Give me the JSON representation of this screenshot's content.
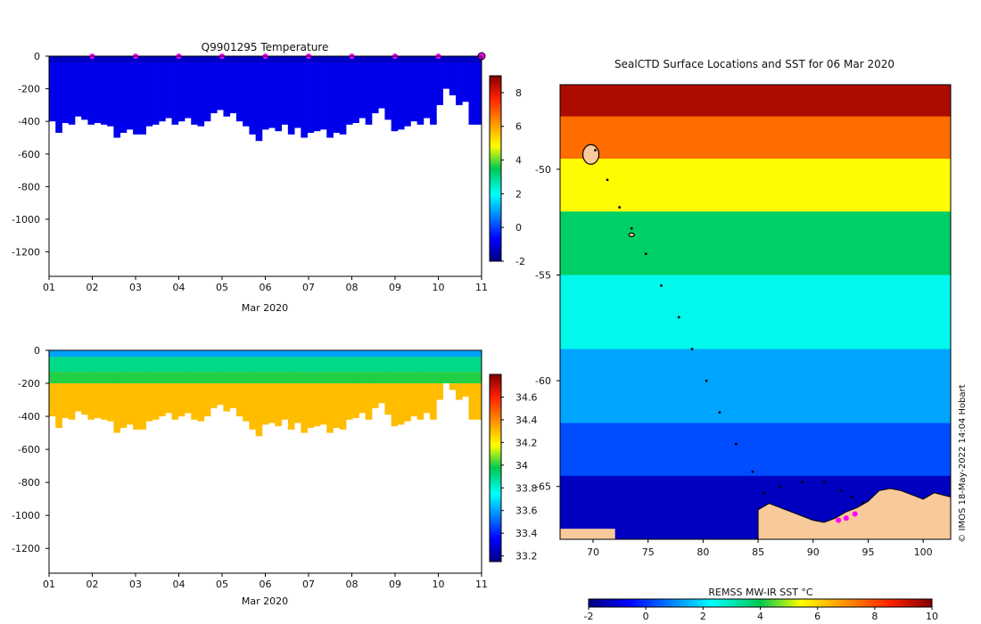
{
  "chart_data": [
    {
      "type": "heatmap",
      "title": "Q9901295  Temperature",
      "variable": "temperature",
      "xlabel": "Mar 2020",
      "x_ticks": [
        "01",
        "02",
        "03",
        "04",
        "05",
        "06",
        "07",
        "08",
        "09",
        "10",
        "11"
      ],
      "x_range_days": [
        1,
        11
      ],
      "y_ticks": [
        0,
        -200,
        -400,
        -600,
        -800,
        -1000,
        -1200
      ],
      "ylim": [
        -1350,
        0
      ],
      "colorbar": {
        "ticks": [
          -2,
          0,
          2,
          4,
          6,
          8
        ],
        "range": [
          -2,
          9
        ]
      },
      "profile_markers_days": [
        2,
        3,
        4,
        5,
        6,
        7,
        8,
        9,
        10,
        11
      ],
      "profile_depths_m": [
        -400,
        -470,
        -410,
        -420,
        -370,
        -390,
        -420,
        -410,
        -420,
        -430,
        -500,
        -470,
        -450,
        -480,
        -480,
        -430,
        -420,
        -400,
        -380,
        -420,
        -400,
        -380,
        -420,
        -430,
        -400,
        -350,
        -330,
        -370,
        -350,
        -400,
        -430,
        -480,
        -520,
        -450,
        -440,
        -460,
        -420,
        -480,
        -440,
        -500,
        -470,
        -460,
        -450,
        -500,
        -470,
        -480,
        -420,
        -410,
        -380,
        -420,
        -350,
        -320,
        -390,
        -460,
        -450,
        -430,
        -400,
        -420,
        -380,
        -420,
        -300,
        -200,
        -240,
        -300,
        -280,
        -420,
        -420
      ],
      "values_note": "near-uniform cold water ~-1 to 0 °C throughout the profiled layer"
    },
    {
      "type": "heatmap",
      "title": "",
      "variable": "salinity",
      "xlabel": "Mar 2020",
      "x_ticks": [
        "01",
        "02",
        "03",
        "04",
        "05",
        "06",
        "07",
        "08",
        "09",
        "10",
        "11"
      ],
      "x_range_days": [
        1,
        11
      ],
      "y_ticks": [
        0,
        -200,
        -400,
        -600,
        -800,
        -1000,
        -1200
      ],
      "ylim": [
        -1350,
        0
      ],
      "colorbar": {
        "ticks": [
          33.2,
          33.4,
          33.6,
          33.8,
          34,
          34.2,
          34.4,
          34.6
        ],
        "range": [
          33.15,
          34.8
        ]
      },
      "layers": [
        {
          "depth_from": 0,
          "depth_to": -40,
          "salinity": 33.6
        },
        {
          "depth_from": -40,
          "depth_to": -130,
          "salinity": 33.9
        },
        {
          "depth_from": -130,
          "depth_to": -200,
          "salinity": 34.0
        },
        {
          "depth_from": -200,
          "depth_to": "bottom",
          "salinity": 34.3
        }
      ]
    },
    {
      "type": "heatmap",
      "title": "SealCTD Surface Locations and SST for 06 Mar 2020",
      "variable": "sea surface temperature (map)",
      "colorbar_label": "REMSS MW-IR SST °C",
      "colorbar_ticks": [
        -2,
        0,
        2,
        4,
        6,
        8,
        10
      ],
      "colorbar_range": [
        -2,
        10
      ],
      "x_ticks": [
        70,
        75,
        80,
        85,
        90,
        95,
        100
      ],
      "xlim": [
        67,
        102.5
      ],
      "y_ticks": [
        -50,
        -55,
        -60,
        -65
      ],
      "ylim": [
        -67.5,
        -46
      ],
      "sst_bands": [
        {
          "lat_from": -46,
          "lat_to": -47.5,
          "sst": 9.5
        },
        {
          "lat_from": -47.5,
          "lat_to": -49.5,
          "sst": 7.5
        },
        {
          "lat_from": -49.5,
          "lat_to": -52,
          "sst": 5.5
        },
        {
          "lat_from": -52,
          "lat_to": -55,
          "sst": 3.8
        },
        {
          "lat_from": -55,
          "lat_to": -58.5,
          "sst": 2.5
        },
        {
          "lat_from": -58.5,
          "lat_to": -62,
          "sst": 1.3
        },
        {
          "lat_from": -62,
          "lat_to": -64.5,
          "sst": 0.3
        },
        {
          "lat_from": -64.5,
          "lat_to": -67.5,
          "sst": -1.3
        }
      ],
      "track": [
        {
          "lon": 70.2,
          "lat": -49.1
        },
        {
          "lon": 71.3,
          "lat": -50.5
        },
        {
          "lon": 72.4,
          "lat": -51.8
        },
        {
          "lon": 73.5,
          "lat": -52.8
        },
        {
          "lon": 74.8,
          "lat": -54.0
        },
        {
          "lon": 76.2,
          "lat": -55.5
        },
        {
          "lon": 77.8,
          "lat": -57.0
        },
        {
          "lon": 79.0,
          "lat": -58.5
        },
        {
          "lon": 80.3,
          "lat": -60.0
        },
        {
          "lon": 81.5,
          "lat": -61.5
        },
        {
          "lon": 83.0,
          "lat": -63.0
        },
        {
          "lon": 84.5,
          "lat": -64.3
        },
        {
          "lon": 85.5,
          "lat": -65.3
        },
        {
          "lon": 87.0,
          "lat": -65.0
        },
        {
          "lon": 89.0,
          "lat": -64.8
        },
        {
          "lon": 91.0,
          "lat": -64.8
        },
        {
          "lon": 92.5,
          "lat": -65.2
        },
        {
          "lon": 93.5,
          "lat": -65.5
        },
        {
          "lon": 94.5,
          "lat": -65.8
        }
      ],
      "surface_points": [
        {
          "lon": 92.3,
          "lat": -66.6
        },
        {
          "lon": 93.0,
          "lat": -66.5
        },
        {
          "lon": 93.8,
          "lat": -66.3
        }
      ],
      "islands": [
        {
          "name": "Kerguelen",
          "lon": 69.8,
          "lat": -49.3
        },
        {
          "name": "Heard",
          "lon": 73.5,
          "lat": -53.1
        }
      ],
      "antarctic_coast": [
        [
          85,
          -66.1
        ],
        [
          86,
          -65.8
        ],
        [
          87,
          -66.0
        ],
        [
          88,
          -66.2
        ],
        [
          89,
          -66.4
        ],
        [
          90,
          -66.6
        ],
        [
          91,
          -66.7
        ],
        [
          92,
          -66.5
        ],
        [
          93,
          -66.2
        ],
        [
          94,
          -66.0
        ],
        [
          95,
          -65.7
        ],
        [
          96,
          -65.2
        ],
        [
          97,
          -65.1
        ],
        [
          98,
          -65.2
        ],
        [
          99,
          -65.4
        ],
        [
          100,
          -65.6
        ],
        [
          101,
          -65.3
        ],
        [
          102.5,
          -65.5
        ]
      ],
      "credit": "© IMOS 18-May-2022 14:04 Hobart"
    }
  ]
}
